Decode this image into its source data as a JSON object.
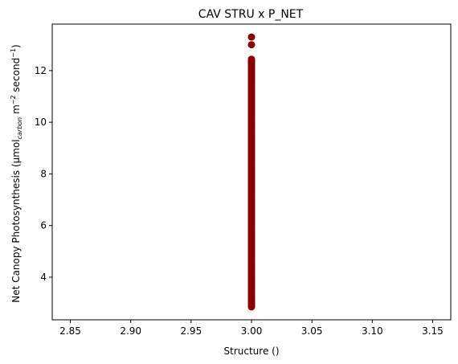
{
  "chart_data": {
    "type": "scatter",
    "title": "CAV STRU x P_NET",
    "xlabel": "Structure ()",
    "ylabel": "Net Canopy Photosynthesis (µmol",
    "ylabel_sub": "carbon",
    "ylabel_mid": " m",
    "ylabel_sup1": "−2",
    "ylabel_end": " second",
    "ylabel_sup2": "−1",
    "ylabel_close": ")",
    "xlim": [
      2.835,
      3.165
    ],
    "ylim": [
      2.35,
      13.8
    ],
    "xticks": [
      2.85,
      2.9,
      2.95,
      3.0,
      3.05,
      3.1,
      3.15
    ],
    "xtick_labels": [
      "2.85",
      "2.90",
      "2.95",
      "3.00",
      "3.05",
      "3.10",
      "3.15"
    ],
    "yticks": [
      4,
      6,
      8,
      10,
      12
    ],
    "ytick_labels": [
      "4",
      "6",
      "8",
      "10",
      "12"
    ],
    "grid": false,
    "marker_color": "#8b0000",
    "series": [
      {
        "x_constant": 3.0,
        "y_min": 2.9,
        "y_max": 12.45,
        "y_step": 0.06,
        "outliers": [
          13.0,
          13.3,
          2.85
        ]
      }
    ]
  }
}
